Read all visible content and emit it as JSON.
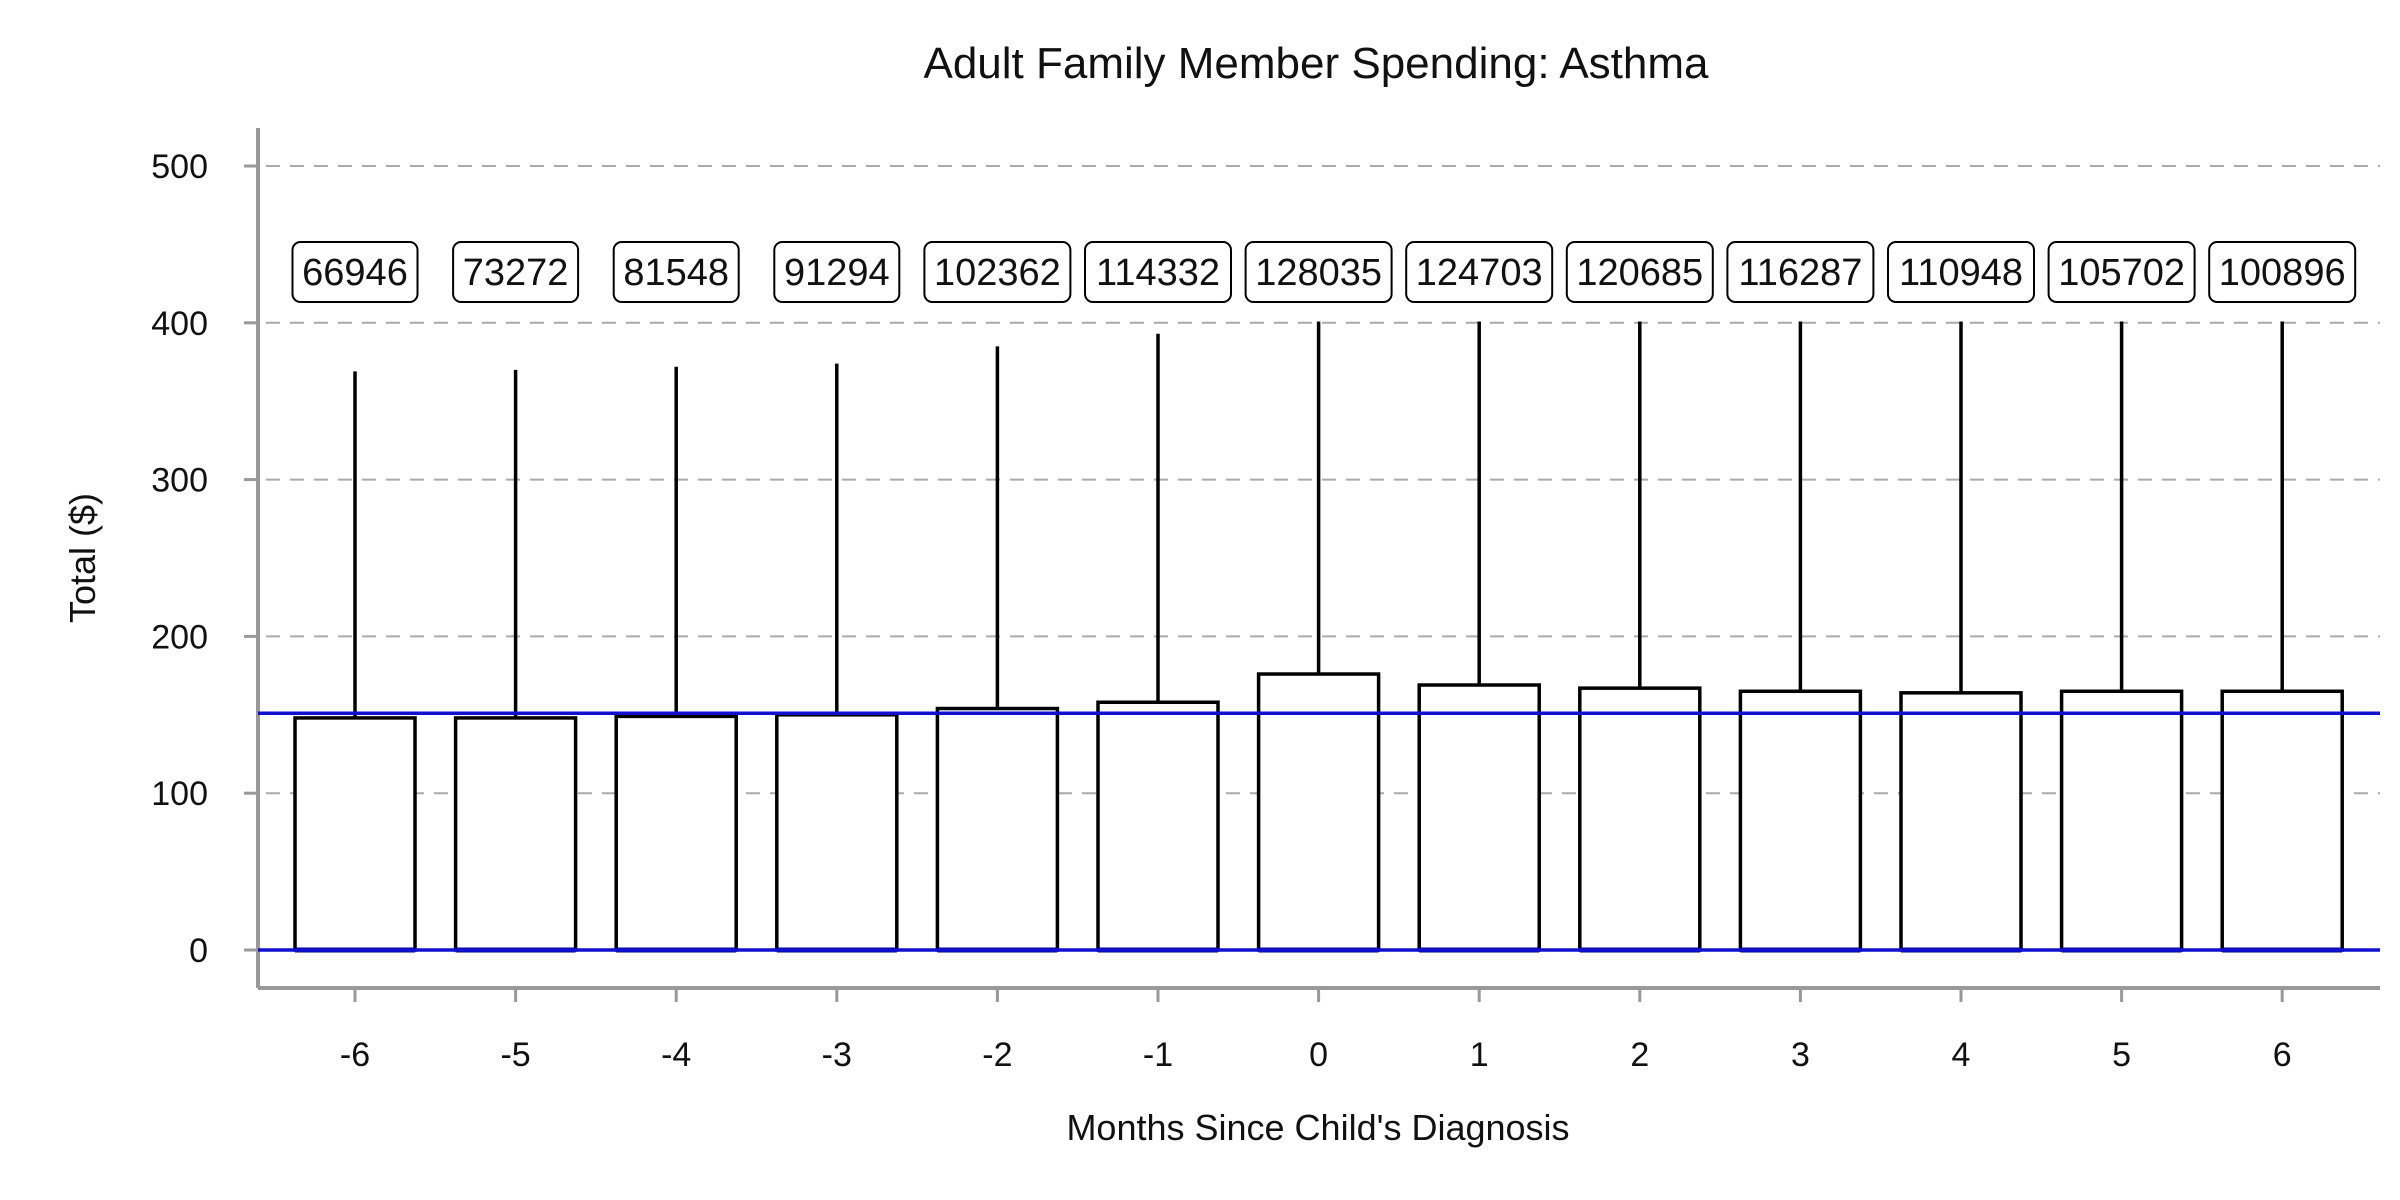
{
  "chart_data": {
    "type": "box",
    "title": "Adult Family Member Spending: Asthma",
    "xlabel": "Months Since Child's Diagnosis",
    "ylabel": "Total ($)",
    "ylim": [
      -25,
      525
    ],
    "yticks": [
      0,
      100,
      200,
      300,
      400,
      500
    ],
    "grid": true,
    "categories": [
      "-6",
      "-5",
      "-4",
      "-3",
      "-2",
      "-1",
      "0",
      "1",
      "2",
      "3",
      "4",
      "5",
      "6"
    ],
    "counts": [
      "66946",
      "73272",
      "81548",
      "91294",
      "102362",
      "114332",
      "128035",
      "124703",
      "120685",
      "116287",
      "110948",
      "105702",
      "100896"
    ],
    "box_bottom": [
      0,
      0,
      0,
      0,
      0,
      0,
      0,
      0,
      0,
      0,
      0,
      0,
      0
    ],
    "box_top": [
      148,
      148,
      149,
      150,
      154,
      158,
      176,
      169,
      167,
      165,
      164,
      165,
      165
    ],
    "median": [
      0,
      0,
      0,
      0,
      0,
      0,
      0,
      0,
      0,
      0,
      0,
      0,
      0
    ],
    "whisker_top": [
      369,
      370,
      372,
      374,
      385,
      393,
      430,
      430,
      430,
      430,
      410,
      430,
      430
    ],
    "reference_lines": [
      151,
      0
    ],
    "colors": {
      "reference_line": "#1010d0",
      "median": "#00008b",
      "box_edge": "#000000",
      "grid": "#aaaaaa"
    }
  }
}
